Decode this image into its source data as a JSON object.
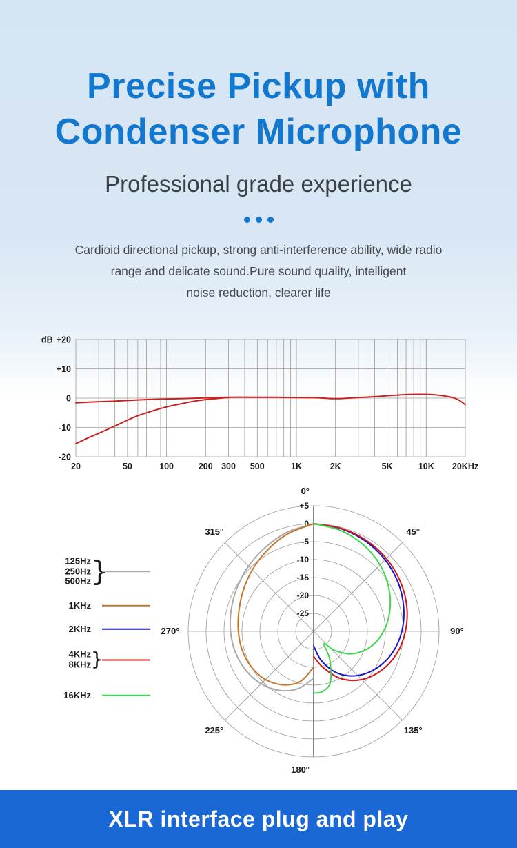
{
  "hero": {
    "title_line1": "Precise Pickup with",
    "title_line2": "Condenser Microphone",
    "subtitle": "Professional grade experience",
    "description_lines": [
      "Cardioid directional pickup, strong anti-interference ability, wide radio",
      "range and delicate sound.Pure sound quality, intelligent",
      "noise reduction, clearer life"
    ]
  },
  "separator": {
    "dot_count": 3
  },
  "banner": {
    "label": "XLR interface plug and play"
  },
  "colors": {
    "title_blue": "#1277cf",
    "dots_blue": "#1277cf",
    "banner_blue": "#1a67d6",
    "grid_gray": "#9a9a9a",
    "curve_red": "#c92020"
  },
  "chart_data": [
    {
      "name": "frequency-response-curve",
      "type": "line",
      "x_scale": "log",
      "xlim": [
        20,
        20000
      ],
      "ylim": [
        -20,
        20
      ],
      "ylabel": "dB",
      "grid": true,
      "x_ticks": [
        {
          "value": 20,
          "label": "20"
        },
        {
          "value": 50,
          "label": "50"
        },
        {
          "value": 100,
          "label": "100"
        },
        {
          "value": 200,
          "label": "200"
        },
        {
          "value": 300,
          "label": "300"
        },
        {
          "value": 500,
          "label": "500"
        },
        {
          "value": 1000,
          "label": "1K"
        },
        {
          "value": 2000,
          "label": "2K"
        },
        {
          "value": 5000,
          "label": "5K"
        },
        {
          "value": 10000,
          "label": "10K"
        },
        {
          "value": 20000,
          "label": "20KHz"
        }
      ],
      "y_ticks": [
        {
          "value": 20,
          "label": "+20"
        },
        {
          "value": 10,
          "label": "+10"
        },
        {
          "value": 0,
          "label": "0"
        },
        {
          "value": -10,
          "label": "-10"
        },
        {
          "value": -20,
          "label": "-20"
        }
      ],
      "grid_frequencies": [
        20,
        30,
        40,
        50,
        60,
        70,
        80,
        90,
        100,
        200,
        300,
        400,
        500,
        600,
        700,
        800,
        900,
        1000,
        2000,
        3000,
        4000,
        5000,
        6000,
        7000,
        8000,
        9000,
        10000,
        20000
      ],
      "series": [
        {
          "name": "response",
          "color": "#c92020",
          "points": [
            [
              20,
              -1.6
            ],
            [
              30,
              -1.2
            ],
            [
              40,
              -1.0
            ],
            [
              50,
              -0.8
            ],
            [
              70,
              -0.5
            ],
            [
              100,
              -0.3
            ],
            [
              150,
              -0.1
            ],
            [
              200,
              0.1
            ],
            [
              300,
              0.3
            ],
            [
              500,
              0.3
            ],
            [
              700,
              0.3
            ],
            [
              1000,
              0.2
            ],
            [
              1500,
              0.1
            ],
            [
              2000,
              -0.2
            ],
            [
              3000,
              0.2
            ],
            [
              4000,
              0.5
            ],
            [
              5000,
              0.8
            ],
            [
              7000,
              1.2
            ],
            [
              9000,
              1.3
            ],
            [
              11000,
              1.2
            ],
            [
              13000,
              0.9
            ],
            [
              16000,
              0.2
            ],
            [
              18000,
              -0.8
            ],
            [
              20000,
              -2.2
            ]
          ]
        },
        {
          "name": "low-cut response",
          "color": "#c92020",
          "points": [
            [
              20,
              -15.5
            ],
            [
              25,
              -13.5
            ],
            [
              30,
              -12.0
            ],
            [
              40,
              -9.5
            ],
            [
              50,
              -7.5
            ],
            [
              60,
              -6.0
            ],
            [
              80,
              -4.2
            ],
            [
              100,
              -3.0
            ],
            [
              130,
              -1.9
            ],
            [
              160,
              -1.1
            ],
            [
              200,
              -0.5
            ],
            [
              250,
              -0.1
            ],
            [
              300,
              0.2
            ]
          ]
        }
      ]
    },
    {
      "name": "polar-pattern",
      "type": "polar",
      "radial_unit": "dB",
      "rings": [
        {
          "db": 5,
          "label": "+5"
        },
        {
          "db": 0,
          "label": "0"
        },
        {
          "db": -5,
          "label": "-5"
        },
        {
          "db": -10,
          "label": "-10"
        },
        {
          "db": -15,
          "label": "-15"
        },
        {
          "db": -20,
          "label": "-20"
        },
        {
          "db": -25,
          "label": "-25"
        }
      ],
      "center_db": -30,
      "angle_labels": [
        {
          "deg": 0,
          "label": "0°"
        },
        {
          "deg": 45,
          "label": "45°"
        },
        {
          "deg": 90,
          "label": "90°"
        },
        {
          "deg": 135,
          "label": "135°"
        },
        {
          "deg": 180,
          "label": "180°"
        },
        {
          "deg": 225,
          "label": "225°"
        },
        {
          "deg": 270,
          "label": "270°"
        },
        {
          "deg": 315,
          "label": "315°"
        }
      ],
      "legend": [
        {
          "labels": [
            "125Hz",
            "250Hz",
            "500Hz"
          ],
          "color": "#a9a9a9",
          "grouped": true
        },
        {
          "labels": [
            "1KHz"
          ],
          "color": "#c2762a",
          "grouped": false
        },
        {
          "labels": [
            "2KHz"
          ],
          "color": "#1616c8",
          "grouped": false
        },
        {
          "labels": [
            "4KHz",
            "8KHz"
          ],
          "color": "#d01818",
          "grouped": true
        },
        {
          "labels": [
            "16KHz"
          ],
          "color": "#3fd64f",
          "grouped": false
        }
      ],
      "series": [
        {
          "name": "125Hz-500Hz",
          "color": "#a9a9a9",
          "points": [
            [
              180,
              -17
            ],
            [
              195,
              -13.5
            ],
            [
              210,
              -11
            ],
            [
              225,
              -9.3
            ],
            [
              240,
              -8.2
            ],
            [
              255,
              -7.4
            ],
            [
              270,
              -6.8
            ],
            [
              285,
              -6.2
            ],
            [
              300,
              -5.4
            ],
            [
              315,
              -4.3
            ],
            [
              330,
              -3.0
            ],
            [
              345,
              -1.4
            ],
            [
              360,
              0
            ]
          ]
        },
        {
          "name": "1KHz",
          "color": "#c2762a",
          "points": [
            [
              180,
              -20
            ],
            [
              195,
              -15.5
            ],
            [
              210,
              -12.8
            ],
            [
              225,
              -11.0
            ],
            [
              240,
              -10.0
            ],
            [
              255,
              -9.4
            ],
            [
              270,
              -9.0
            ],
            [
              285,
              -8.4
            ],
            [
              300,
              -7.3
            ],
            [
              315,
              -5.8
            ],
            [
              330,
              -4.0
            ],
            [
              345,
              -1.9
            ],
            [
              360,
              0
            ]
          ]
        },
        {
          "name": "2KHz",
          "color": "#1616c8",
          "points": [
            [
              0,
              0
            ],
            [
              15,
              -0.4
            ],
            [
              30,
              -1.0
            ],
            [
              45,
              -1.8
            ],
            [
              60,
              -2.8
            ],
            [
              75,
              -4.0
            ],
            [
              90,
              -5.4
            ],
            [
              105,
              -7.2
            ],
            [
              120,
              -9.6
            ],
            [
              135,
              -12.6
            ],
            [
              150,
              -16.5
            ],
            [
              165,
              -21.5
            ],
            [
              180,
              -26
            ]
          ]
        },
        {
          "name": "4KHz-8KHz",
          "color": "#d01818",
          "points": [
            [
              0,
              0
            ],
            [
              15,
              -0.3
            ],
            [
              30,
              -0.7
            ],
            [
              45,
              -1.3
            ],
            [
              60,
              -2.1
            ],
            [
              75,
              -3.1
            ],
            [
              90,
              -4.4
            ],
            [
              105,
              -6.0
            ],
            [
              120,
              -8.2
            ],
            [
              135,
              -11.0
            ],
            [
              150,
              -14.8
            ],
            [
              165,
              -19.5
            ],
            [
              180,
              -23
            ]
          ]
        },
        {
          "name": "16KHz",
          "color": "#3fd64f",
          "points": [
            [
              0,
              0
            ],
            [
              15,
              -0.9
            ],
            [
              30,
              -2.2
            ],
            [
              45,
              -3.8
            ],
            [
              60,
              -5.8
            ],
            [
              75,
              -8.0
            ],
            [
              90,
              -10.5
            ],
            [
              105,
              -13.5
            ],
            [
              120,
              -17.5
            ],
            [
              132,
              -22.0
            ],
            [
              140,
              -25.5
            ],
            [
              150,
              -21.0
            ],
            [
              162,
              -15.0
            ],
            [
              172,
              -13.0
            ],
            [
              180,
              -12.8
            ]
          ]
        }
      ]
    }
  ]
}
